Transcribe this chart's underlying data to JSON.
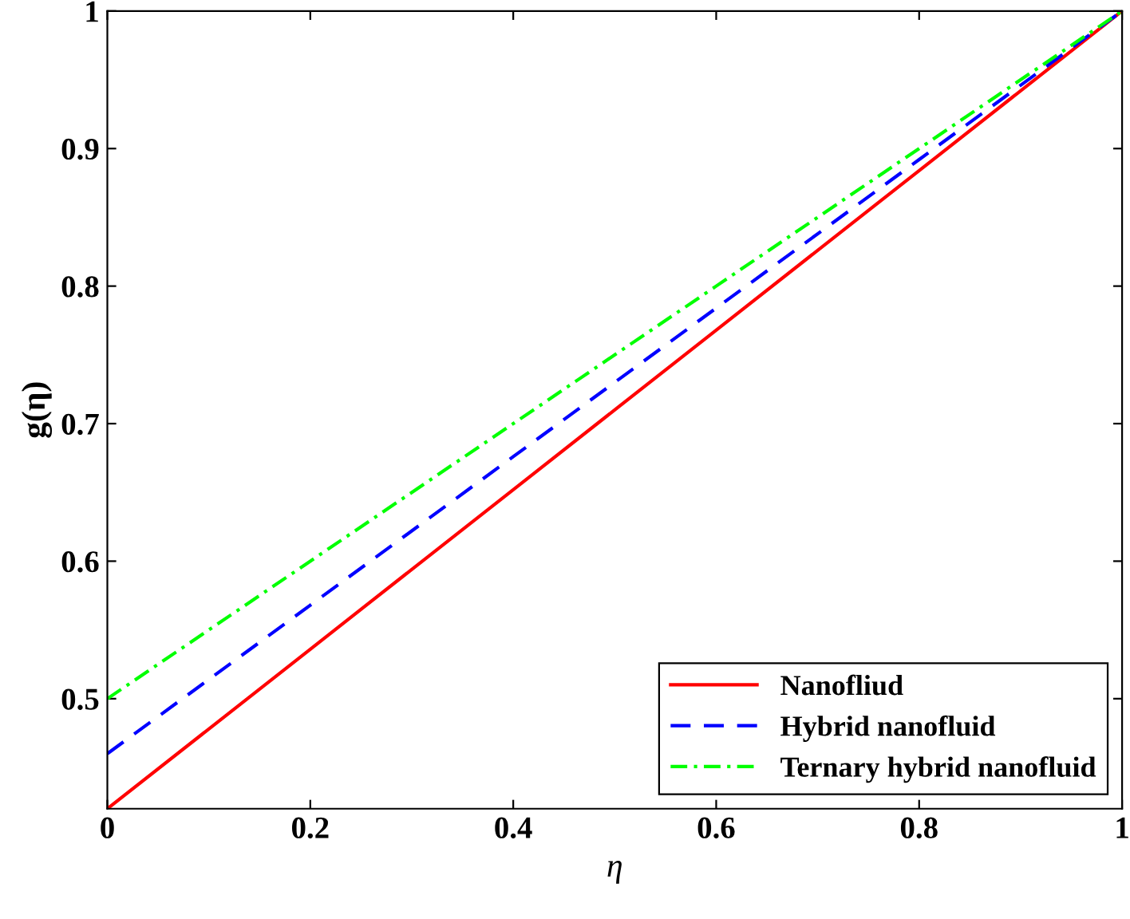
{
  "chart_data": {
    "type": "line",
    "xlabel": "η",
    "ylabel": "g(η)",
    "x": [
      0,
      0.2,
      0.4,
      0.6,
      0.8,
      1
    ],
    "series": [
      {
        "name": "Nanofliud",
        "color": "#ff0000",
        "line_style": "solid",
        "values": [
          0.42,
          0.536,
          0.652,
          0.768,
          0.884,
          1
        ]
      },
      {
        "name": "Hybrid nanofluid",
        "color": "#0000ff",
        "line_style": "dashed",
        "values": [
          0.46,
          0.568,
          0.676,
          0.784,
          0.892,
          1
        ]
      },
      {
        "name": "Ternary hybrid nanofluid",
        "color": "#00ff00",
        "line_style": "dashdot",
        "values": [
          0.5,
          0.6,
          0.7,
          0.8,
          0.9,
          1
        ]
      }
    ],
    "xlim": [
      0,
      1
    ],
    "ylim": [
      0.42,
      1
    ],
    "xticks": [
      0,
      0.2,
      0.4,
      0.6,
      0.8,
      1
    ],
    "yticks": [
      0.5,
      0.6,
      0.7,
      0.8,
      0.9,
      1
    ],
    "grid": false,
    "legend": "bottom right",
    "marker": "none"
  }
}
